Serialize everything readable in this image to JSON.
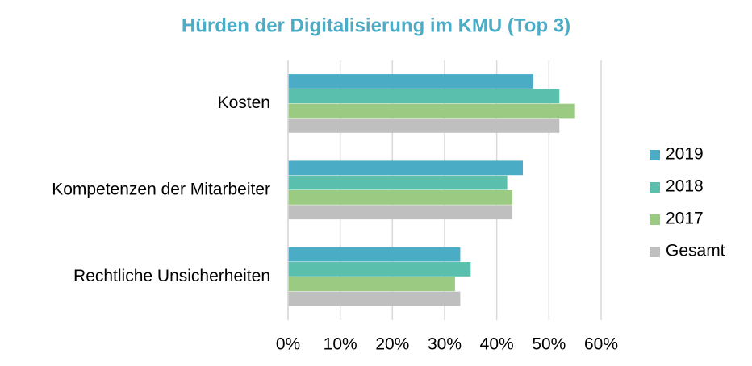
{
  "chart_data": {
    "type": "bar",
    "orientation": "horizontal",
    "title": "Hürden der Digitalisierung im KMU (Top 3)",
    "categories": [
      "Kosten",
      "Kompetenzen der Mitarbeiter",
      "Rechtliche Unsicherheiten"
    ],
    "series": [
      {
        "name": "2019",
        "color": "#4bacc6",
        "values": [
          47,
          45,
          33
        ]
      },
      {
        "name": "2018",
        "color": "#5bbfad",
        "values": [
          52,
          42,
          35
        ]
      },
      {
        "name": "2017",
        "color": "#9bcb82",
        "values": [
          55,
          43,
          32
        ]
      },
      {
        "name": "Gesamt",
        "color": "#bfbfbf",
        "values": [
          52,
          43,
          33
        ]
      }
    ],
    "xlim": [
      0,
      60
    ],
    "xticks": [
      {
        "value": 0,
        "label": "0%"
      },
      {
        "value": 10,
        "label": "10%"
      },
      {
        "value": 20,
        "label": "20%"
      },
      {
        "value": 30,
        "label": "30%"
      },
      {
        "value": 40,
        "label": "40%"
      },
      {
        "value": 50,
        "label": "50%"
      },
      {
        "value": 60,
        "label": "60%"
      }
    ],
    "grid": true,
    "legend": "right"
  }
}
